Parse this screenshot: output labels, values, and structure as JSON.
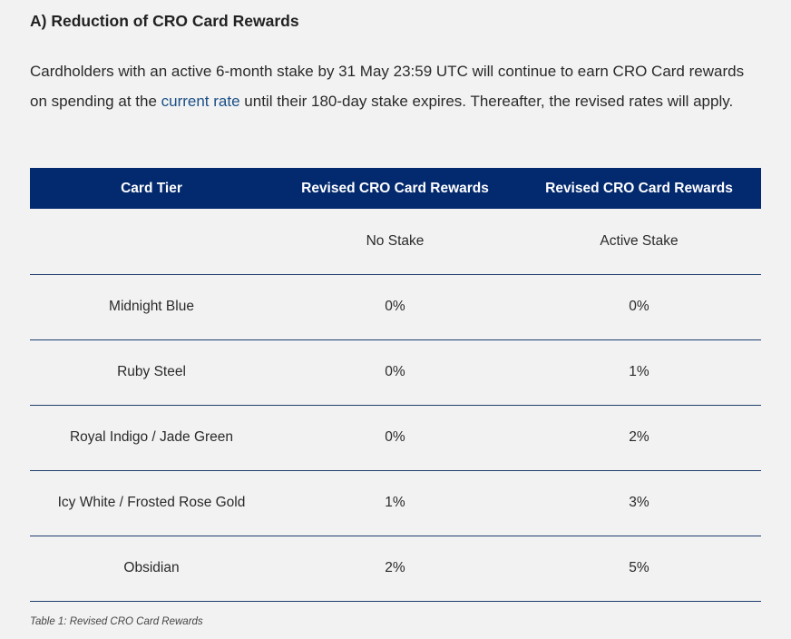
{
  "heading": "A) Reduction of CRO Card Rewards",
  "paragraph": {
    "before_link": "Cardholders with an active 6-month stake by 31 May 23:59 UTC will continue to earn CRO Card rewards on spending at the ",
    "link_text": "current rate",
    "after_link": " until their 180-day stake expires. Thereafter, the revised rates will apply."
  },
  "table": {
    "headers": [
      "Card Tier",
      "Revised CRO Card Rewards",
      "Revised CRO Card Rewards"
    ],
    "subheaders": [
      "",
      "No Stake",
      "Active Stake"
    ],
    "rows": [
      [
        "Midnight Blue",
        "0%",
        "0%"
      ],
      [
        "Ruby Steel",
        "0%",
        "1%"
      ],
      [
        "Royal Indigo / Jade Green",
        "0%",
        "2%"
      ],
      [
        "Icy White / Frosted Rose Gold",
        "1%",
        "3%"
      ],
      [
        "Obsidian",
        "2%",
        "5%"
      ]
    ]
  },
  "caption": "Table 1: Revised CRO Card Rewards",
  "colors": {
    "header_bg": "#03296e",
    "link": "#1b4f86",
    "background": "#f2f2f2"
  }
}
